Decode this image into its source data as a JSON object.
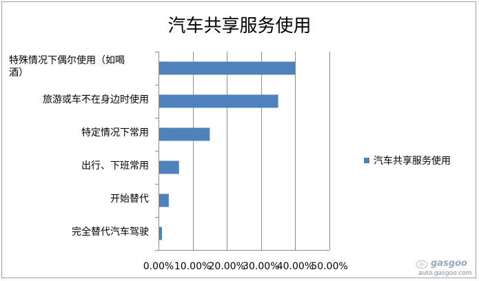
{
  "chart_data": {
    "type": "bar",
    "orientation": "horizontal",
    "title": "汽车共享服务使用",
    "categories": [
      "特殊情况下偶尔使用（如喝酒）",
      "旅游或车不在身边时使用",
      "特定情况下常用",
      "出行、下班常用",
      "开始替代",
      "完全替代汽车驾驶"
    ],
    "category_lines": [
      [
        "特殊情况下偶尔使用（如喝",
        "酒）"
      ],
      [
        "旅游或车不在身边时使用"
      ],
      [
        "特定情况下常用"
      ],
      [
        "出行、下班常用"
      ],
      [
        "开始替代"
      ],
      [
        "完全替代汽车驾驶"
      ]
    ],
    "series": [
      {
        "name": "汽车共享服务使用",
        "values": [
          40.0,
          35.0,
          15.0,
          6.0,
          3.0,
          1.0
        ]
      }
    ],
    "xlim": [
      0,
      50
    ],
    "x_ticks": [
      0,
      10,
      20,
      30,
      40,
      50
    ],
    "x_tick_labels": [
      "0.00%",
      "10.00%",
      "20.00%",
      "30.00%",
      "40.00%",
      "50.00%"
    ],
    "grid": "vertical",
    "legend_position": "right",
    "bar_color": "#4f81bd"
  },
  "watermark": {
    "brand": "gasgoo",
    "url": "auto.gasgoo.com"
  }
}
